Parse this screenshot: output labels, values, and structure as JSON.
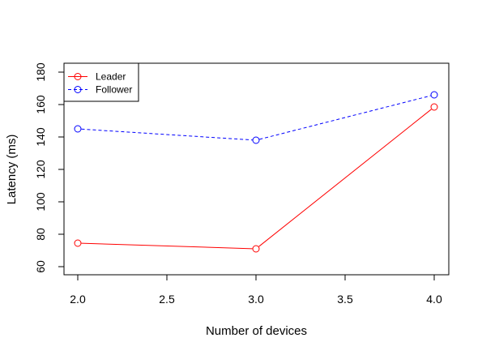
{
  "chart_data": {
    "type": "line",
    "xlabel": "Number of devices",
    "ylabel": "Latency (ms)",
    "xlim": [
      2.0,
      4.0
    ],
    "ylim": [
      60,
      180
    ],
    "x_ticks": [
      "2.0",
      "2.5",
      "3.0",
      "3.5",
      "4.0"
    ],
    "y_ticks": [
      "60",
      "80",
      "100",
      "120",
      "140",
      "160",
      "180"
    ],
    "x": [
      2.0,
      3.0,
      4.0
    ],
    "series": [
      {
        "name": "Leader",
        "values": [
          74.5,
          71,
          158.5
        ],
        "color": "#ff0000",
        "line_style": "solid",
        "marker": "open-circle"
      },
      {
        "name": "Follower",
        "values": [
          145,
          138,
          166
        ],
        "color": "#0000ff",
        "line_style": "dashed",
        "marker": "open-circle"
      }
    ],
    "legend": {
      "position": "top-left",
      "entries": [
        "Leader",
        "Follower"
      ]
    },
    "grid": false
  }
}
